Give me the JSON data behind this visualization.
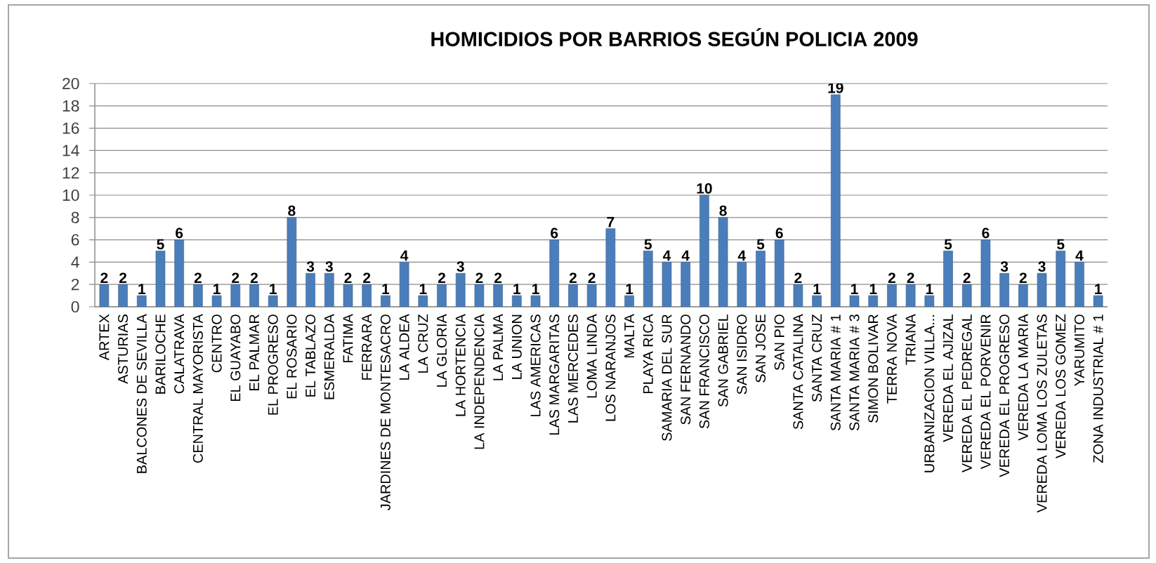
{
  "chart_data": {
    "type": "bar",
    "title": "HOMICIDIOS POR BARRIOS SEGÚN POLICIA 2009",
    "categories": [
      "ARTEX",
      "ASTURIAS",
      "BALCONES DE SEVILLA",
      "BARILOCHE",
      "CALATRAVA",
      "CENTRAL MAYORISTA",
      "CENTRO",
      "EL GUAYABO",
      "EL PALMAR",
      "EL PROGRESO",
      "EL ROSARIO",
      "EL TABLAZO",
      "ESMERALDA",
      "FATIMA",
      "FERRARA",
      "JARDINES DE MONTESACRO",
      "LA ALDEA",
      "LA CRUZ",
      "LA GLORIA",
      "LA HORTENCIA",
      "LA INDEPENDENCIA",
      "LA PALMA",
      "LA UNION",
      "LAS AMERICAS",
      "LAS MARGARITAS",
      "LAS MERCEDES",
      "LOMA LINDA",
      "LOS NARANJOS",
      "MALTA",
      "PLAYA RICA",
      "SAMARIA DEL SUR",
      "SAN FERNANDO",
      "SAN FRANCISCO",
      "SAN GABRIEL",
      "SAN ISIDRO",
      "SAN JOSE",
      "SAN PIO",
      "SANTA CATALINA",
      "SANTA CRUZ",
      "SANTA MARIA # 1",
      "SANTA MARIA # 3",
      "SIMON BOLIVAR",
      "TERRA NOVA",
      "TRIANA",
      "URBANIZACION VILLA...",
      "VEREDA EL AJIZAL",
      "VEREDA EL PEDREGAL",
      "VEREDA EL PORVENIR",
      "VEREDA EL PROGRESO",
      "VEREDA LA MARIA",
      "VEREDA LOMA LOS ZULETAS",
      "VEREDA LOS GOMEZ",
      "YARUMITO",
      "ZONA INDUSTRIAL # 1"
    ],
    "values": [
      2,
      2,
      1,
      5,
      6,
      2,
      1,
      2,
      2,
      1,
      8,
      3,
      3,
      2,
      2,
      1,
      4,
      1,
      2,
      3,
      2,
      2,
      1,
      1,
      6,
      2,
      2,
      7,
      1,
      5,
      4,
      4,
      10,
      8,
      4,
      5,
      6,
      2,
      1,
      19,
      1,
      1,
      2,
      2,
      1,
      5,
      2,
      6,
      3,
      2,
      3,
      5,
      4,
      1
    ],
    "color": "#4a7ebb",
    "ylim": [
      0,
      20
    ],
    "yticks": [
      0,
      2,
      4,
      6,
      8,
      10,
      12,
      14,
      16,
      18,
      20
    ],
    "grid": "y",
    "data_labels": true
  }
}
